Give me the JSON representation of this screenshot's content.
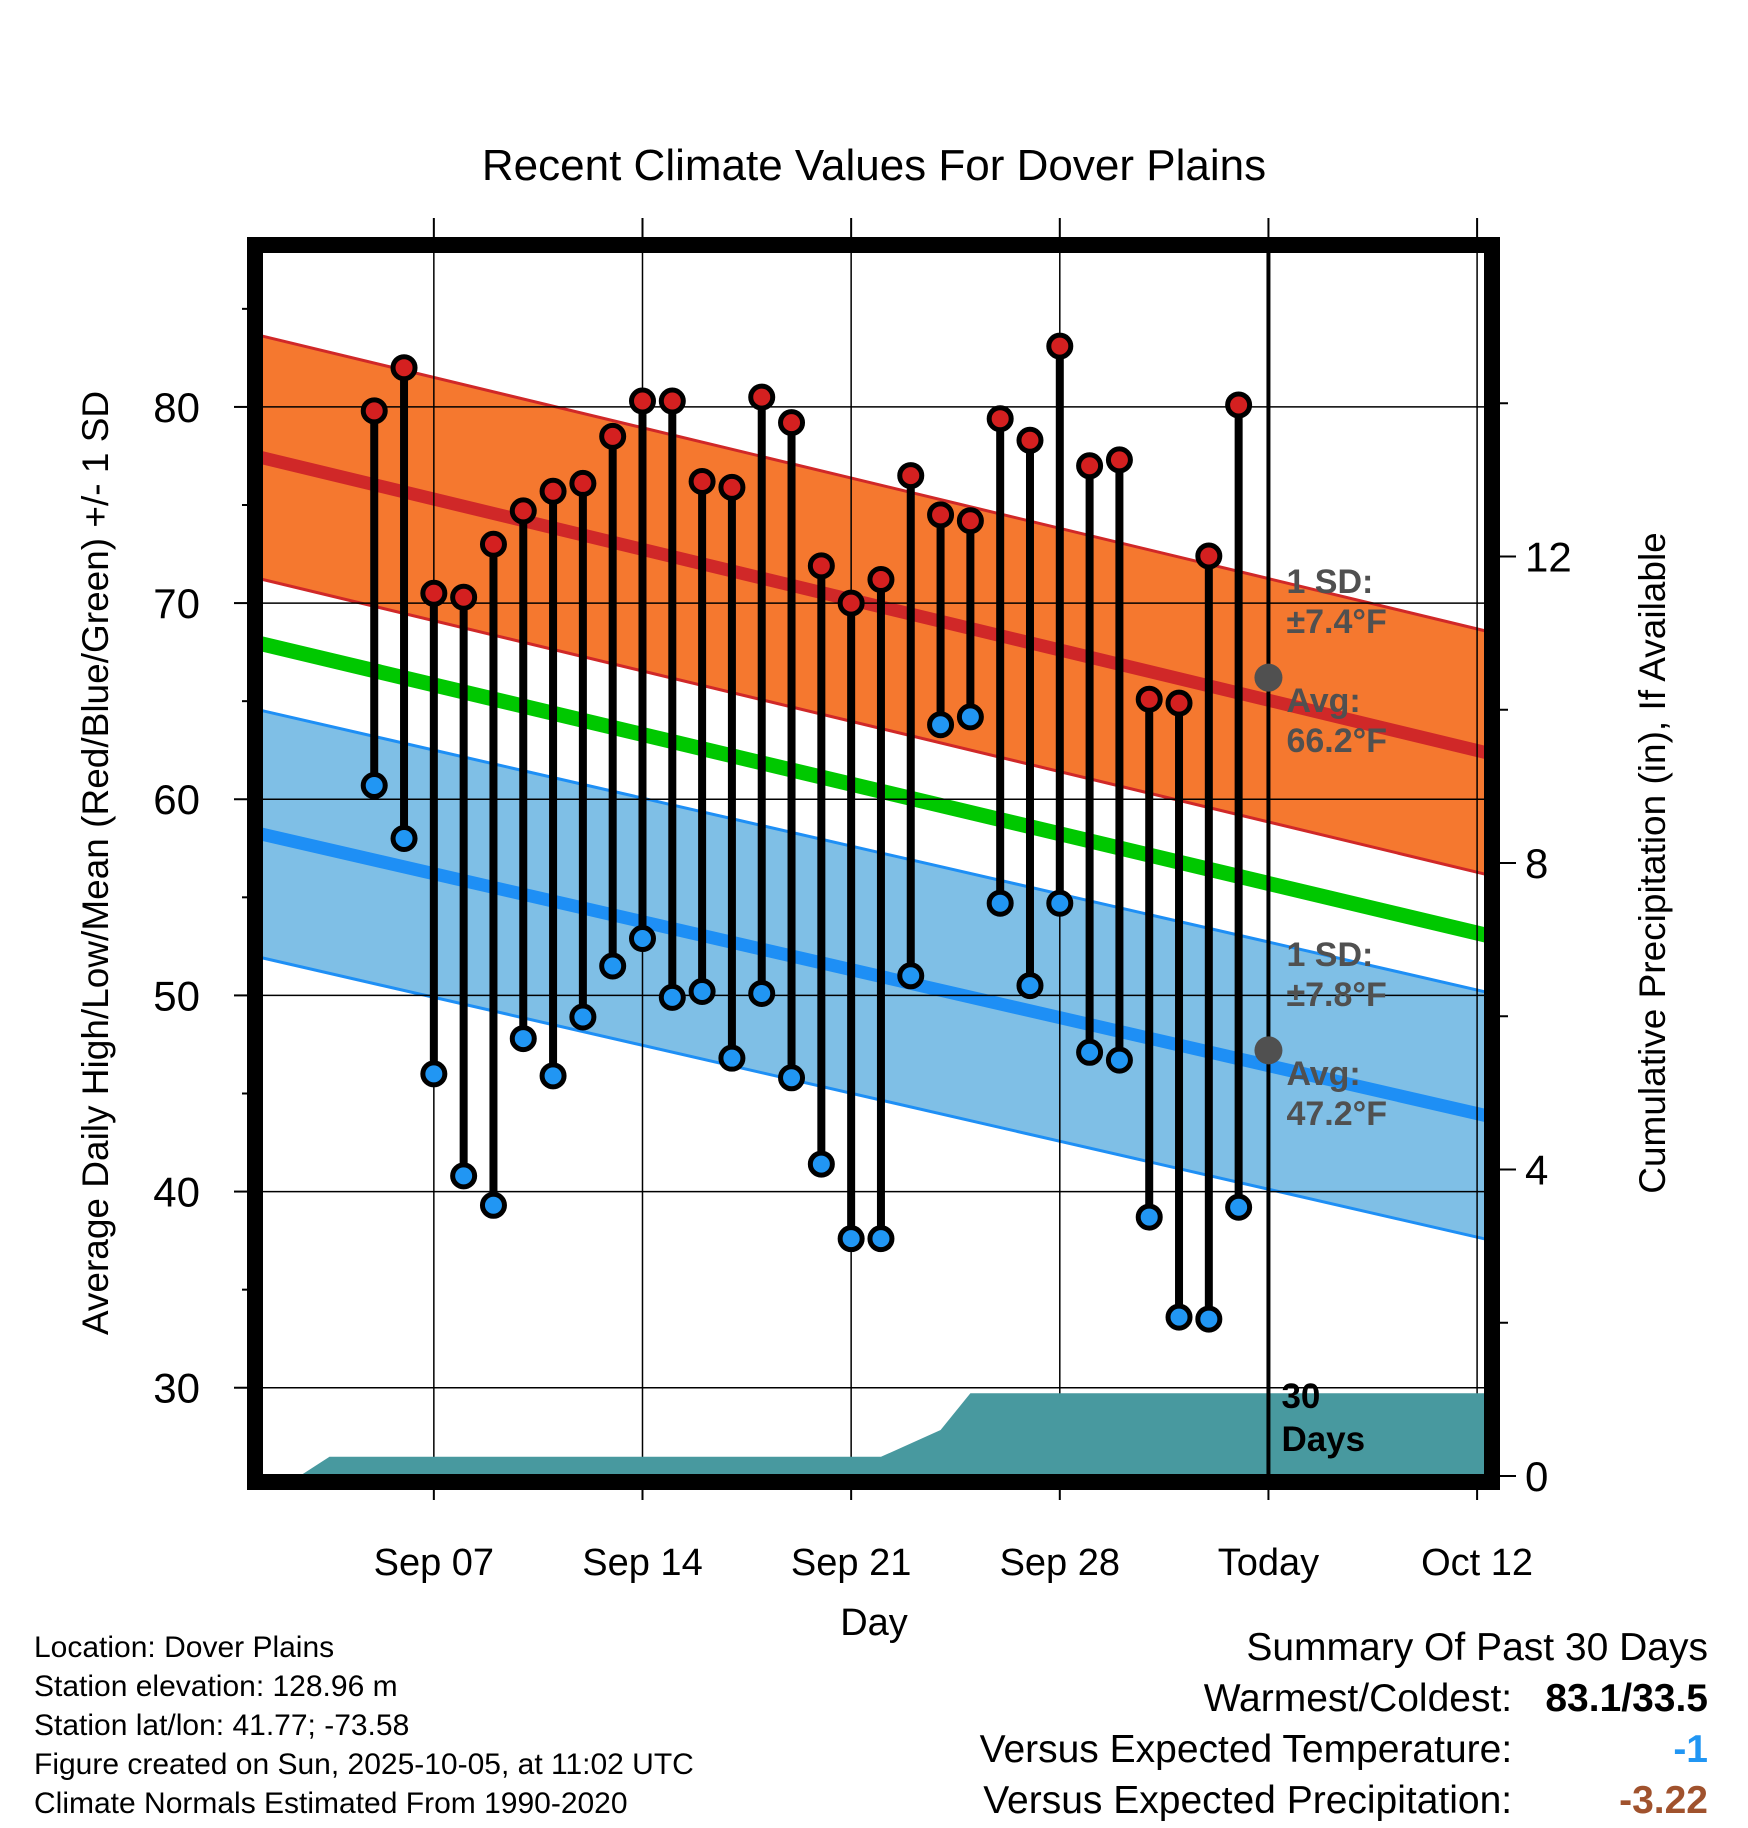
{
  "chart_data": {
    "type": "line",
    "title": "Recent Climate Values For Dover Plains",
    "xlabel": "Day",
    "ylabel": "Average Daily High/Low/Mean (Red/Blue/Green) +/- 1 SD",
    "ylabel_right": "Cumulative Precipitation (in), If Available",
    "ylim": [
      25.5,
      88
    ],
    "ylim_right": [
      0,
      16
    ],
    "yticks": [
      30,
      40,
      50,
      60,
      70,
      80
    ],
    "yticks_right": [
      0,
      4,
      8,
      12
    ],
    "xlim": [
      1,
      42.5
    ],
    "x_ticks": [
      {
        "x": 7,
        "label": "Sep 07"
      },
      {
        "x": 14,
        "label": "Sep 14"
      },
      {
        "x": 21,
        "label": "Sep 21"
      },
      {
        "x": 28,
        "label": "Sep 28"
      },
      {
        "x": 35,
        "label": "Today"
      },
      {
        "x": 42,
        "label": "Oct 12"
      }
    ],
    "today_x": 35,
    "today_label": [
      "30",
      "Days"
    ],
    "normals": {
      "high_mean": [
        77.5,
        62.3
      ],
      "high_sd": 6.2,
      "low_mean": [
        58.3,
        43.8
      ],
      "low_sd": 6.3,
      "mean": [
        68.0,
        53.0
      ]
    },
    "annotations": {
      "high_sd_label": [
        "1 SD:",
        "±7.4°F"
      ],
      "high_avg_label": [
        "Avg:",
        "66.2°F"
      ],
      "high_avg_value": 66.2,
      "low_sd_label": [
        "1 SD:",
        "±7.8°F"
      ],
      "low_avg_label": [
        "Avg:",
        "47.2°F"
      ],
      "low_avg_value": 47.2
    },
    "days": [
      5,
      6,
      7,
      8,
      9,
      10,
      11,
      12,
      13,
      14,
      15,
      16,
      17,
      18,
      19,
      20,
      21,
      22,
      23,
      24,
      25,
      26,
      27,
      28,
      29,
      30,
      31,
      32,
      33,
      34
    ],
    "highs": [
      79.8,
      82.0,
      70.5,
      70.3,
      73.0,
      74.7,
      75.7,
      76.1,
      78.5,
      80.3,
      80.3,
      76.2,
      75.9,
      80.5,
      79.2,
      71.9,
      70.0,
      71.2,
      76.5,
      74.5,
      74.2,
      79.4,
      78.3,
      83.1,
      77.0,
      77.3,
      65.1,
      64.9,
      72.4,
      80.1
    ],
    "lows": [
      60.7,
      58.0,
      46.0,
      40.8,
      39.3,
      47.8,
      45.9,
      48.9,
      51.5,
      52.9,
      49.9,
      50.2,
      46.8,
      50.1,
      45.8,
      41.4,
      37.6,
      37.6,
      51.0,
      63.8,
      64.2,
      54.7,
      50.5,
      54.7,
      47.1,
      46.7,
      38.7,
      33.6,
      33.5,
      39.2
    ],
    "precip": {
      "x": [
        1,
        2.5,
        3.5,
        17,
        21,
        22,
        24,
        25,
        34,
        42.5
      ],
      "y": [
        0,
        0,
        0.25,
        0.25,
        0.25,
        0.25,
        0.6,
        1.08,
        1.08,
        1.08
      ]
    },
    "colors": {
      "high_band": "#f5782f",
      "high_line": "#d02828",
      "low_band": "#7fbfe6",
      "low_line": "#1e8ff5",
      "mean_line": "#00c800",
      "precip": "#48999f",
      "high_marker": "#d42020",
      "low_marker": "#2196f3",
      "annotation": "#505050"
    }
  },
  "meta": {
    "location": "Location: Dover Plains",
    "elevation": "Station elevation: 128.96 m",
    "latlon": "Station lat/lon: 41.77; -73.58",
    "created": "Figure created on Sun, 2025-10-05, at 11:02 UTC",
    "normals": "Climate Normals Estimated From 1990-2020"
  },
  "summary": {
    "title": "Summary Of Past 30 Days",
    "warmest_label": "Warmest/Coldest:",
    "warmest_value": "83.1/33.5",
    "temp_label": "Versus Expected Temperature:",
    "temp_value": "-1",
    "temp_color": "#2196f3",
    "precip_label": "Versus Expected Precipitation:",
    "precip_value": "-3.22",
    "precip_color": "#a0522d"
  }
}
